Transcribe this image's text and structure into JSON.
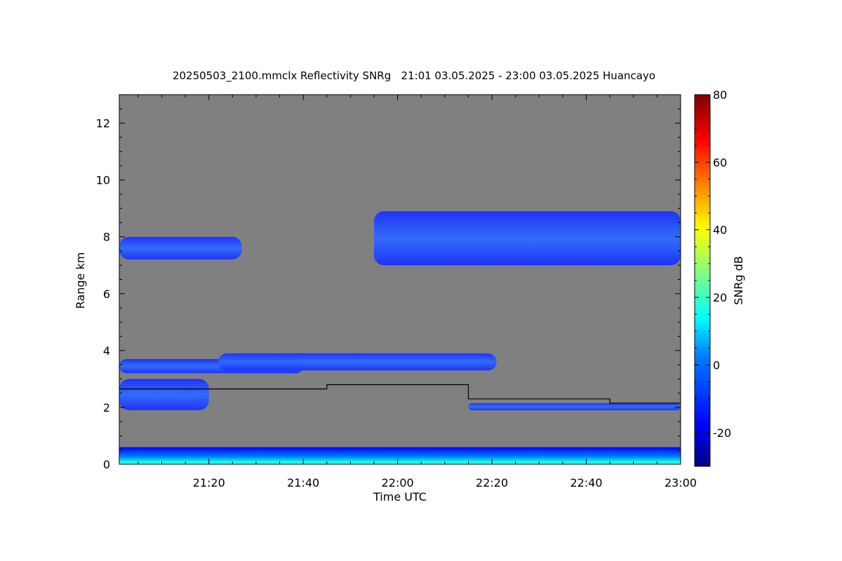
{
  "chart_data": {
    "type": "heatmap",
    "title": "20250503_2100.mmclx Reflectivity SNRg   21:01 03.05.2025 - 23:00 03.05.2025 Huancayo",
    "xlabel": "Time UTC",
    "ylabel": "Range km",
    "x_ticks": [
      "21:20",
      "21:40",
      "22:00",
      "22:20",
      "22:40",
      "23:00"
    ],
    "x_range_minutes_utc": [
      1261,
      1380
    ],
    "x_tick_minutes": [
      1280,
      1300,
      1320,
      1340,
      1360,
      1380
    ],
    "y_ticks": [
      "0",
      "2",
      "4",
      "6",
      "8",
      "10",
      "12"
    ],
    "y_tick_values": [
      0,
      2,
      4,
      6,
      8,
      10,
      12
    ],
    "ylim": [
      0,
      13
    ],
    "colorbar": {
      "label": "SNRg dB",
      "range": [
        -30,
        80
      ],
      "ticks": [
        "-20",
        "0",
        "20",
        "40",
        "60",
        "80"
      ],
      "tick_values": [
        -20,
        0,
        20,
        40,
        60,
        80
      ]
    },
    "background_color": "#808080",
    "cloud_layers": [
      {
        "t0": 1261,
        "t1": 1287,
        "base_km": 7.2,
        "top_km": 8.0
      },
      {
        "t0": 1315,
        "t1": 1380,
        "base_km": 7.0,
        "top_km": 8.9
      },
      {
        "t0": 1261,
        "t1": 1300,
        "base_km": 3.2,
        "top_km": 3.7
      },
      {
        "t0": 1282,
        "t1": 1341,
        "base_km": 3.3,
        "top_km": 3.9
      },
      {
        "t0": 1261,
        "t1": 1280,
        "base_km": 1.9,
        "top_km": 3.0
      },
      {
        "t0": 1335,
        "t1": 1380,
        "base_km": 1.9,
        "top_km": 2.15
      },
      {
        "t0": 1261,
        "t1": 1380,
        "base_km": 0.0,
        "top_km": 0.6
      }
    ],
    "boundary_line": [
      {
        "t": 1261,
        "km": 2.65
      },
      {
        "t": 1305,
        "km": 2.65
      },
      {
        "t": 1305,
        "km": 2.8
      },
      {
        "t": 1335,
        "km": 2.8
      },
      {
        "t": 1335,
        "km": 2.3
      },
      {
        "t": 1365,
        "km": 2.3
      },
      {
        "t": 1365,
        "km": 2.15
      },
      {
        "t": 1380,
        "km": 2.15
      }
    ]
  }
}
